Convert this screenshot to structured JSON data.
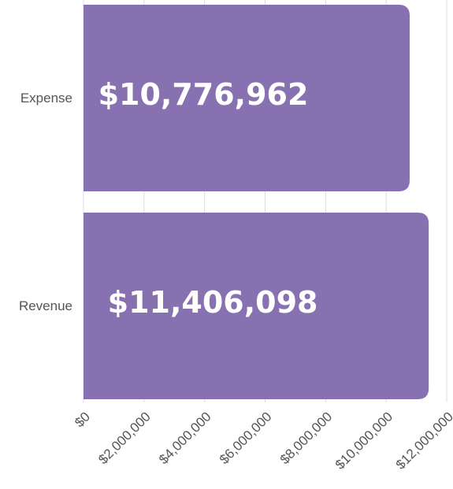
{
  "chart_data": {
    "type": "barh",
    "categories": [
      "Expense",
      "Revenue"
    ],
    "values": [
      10776962,
      11406098
    ],
    "value_labels": [
      "$10,776,962",
      "$11,406,098"
    ],
    "color": "#8771b0",
    "xlim": [
      0,
      12000000
    ],
    "xticks": [
      {
        "value": 0,
        "label": "$0"
      },
      {
        "value": 2000000,
        "label": "$2,000,000"
      },
      {
        "value": 4000000,
        "label": "$4,000,000"
      },
      {
        "value": 6000000,
        "label": "$6,000,000"
      },
      {
        "value": 8000000,
        "label": "$8,000,000"
      },
      {
        "value": 10000000,
        "label": "$10,000,000"
      },
      {
        "value": 12000000,
        "label": "$12,000,000"
      }
    ],
    "grid": true
  }
}
